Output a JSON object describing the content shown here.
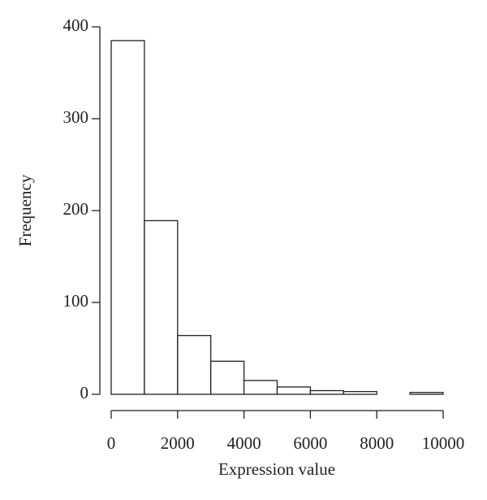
{
  "chart_data": {
    "type": "histogram",
    "x_label": "Expression value",
    "y_label": "Frequency",
    "bins": [
      0,
      1000,
      2000,
      3000,
      4000,
      5000,
      6000,
      7000,
      8000,
      9000,
      10000
    ],
    "values": [
      385,
      189,
      64,
      36,
      15,
      8,
      4,
      3,
      0,
      2
    ],
    "color": "#ffffff",
    "edge_color": "#231f20",
    "xlim": [
      0,
      10000
    ],
    "xticks": [
      0,
      2000,
      4000,
      6000,
      8000,
      10000
    ],
    "ylim": [
      0,
      400
    ],
    "yticks": [
      0,
      100,
      200,
      300,
      400
    ]
  }
}
